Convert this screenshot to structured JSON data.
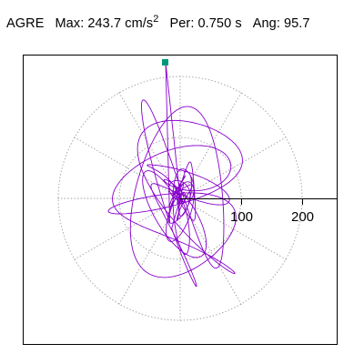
{
  "header": {
    "station": "AGRE",
    "max_label": "Max:",
    "max_value": "243.7 cm/s",
    "max_exp": "2",
    "per_label": "Per:",
    "per_value": "0.750 s",
    "ang_label": "Ang:",
    "ang_value": "95.7"
  },
  "chart_data": {
    "type": "polar-particle-motion",
    "title": "AGRE  Max: 243.7 cm/s 2  Per: 0.750 s  Ang: 95.7",
    "max_amplitude": 243.7,
    "unit": "cm/s2",
    "period_s": 0.75,
    "angle_deg": 95.7,
    "radial_ticks": [
      100,
      200
    ],
    "grid_circles": [
      100,
      200
    ],
    "spoke_angles_deg": [
      30,
      60,
      90,
      120,
      150,
      180,
      210,
      240,
      270,
      300,
      330
    ],
    "grid": true,
    "colors": {
      "trace": "#8800cc",
      "peak_marker": "#009977",
      "grid": "#9a9a9a",
      "frame": "#000000"
    }
  }
}
